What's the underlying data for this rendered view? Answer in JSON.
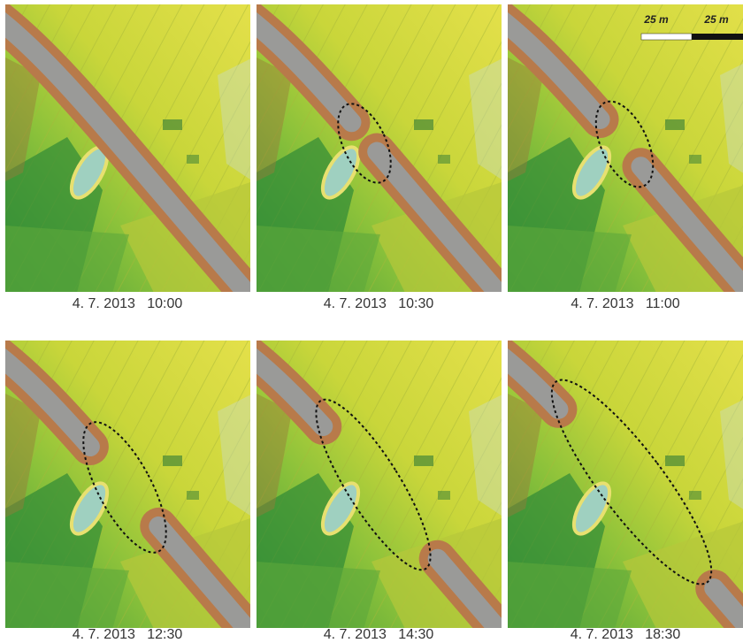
{
  "panels": [
    {
      "caption": "4. 7. 2013   10:00"
    },
    {
      "caption": "4. 7. 2013   10:30"
    },
    {
      "caption": "4. 7. 2013   11:00"
    },
    {
      "caption": "4. 7. 2013   12:30"
    },
    {
      "caption": "4. 7. 2013   14:30"
    },
    {
      "caption": "4. 7. 2013   18:30"
    }
  ],
  "scale_bar": {
    "labels": [
      "25 m",
      "25 m"
    ]
  }
}
